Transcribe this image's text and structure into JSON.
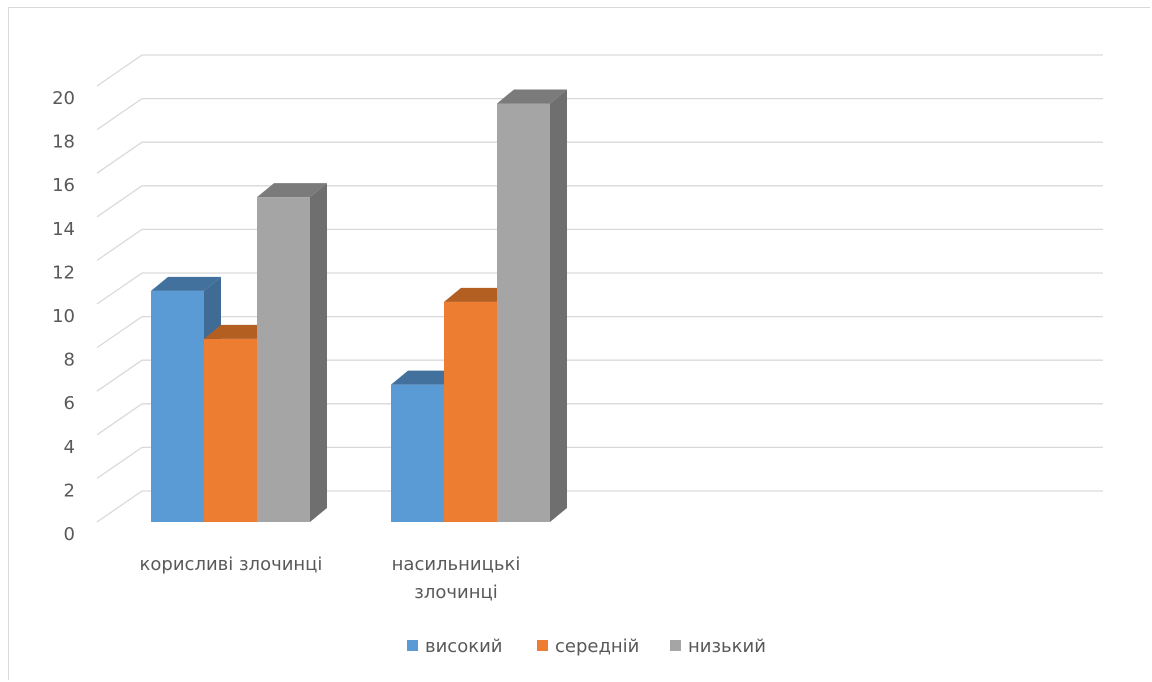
{
  "chart_data": {
    "type": "bar",
    "style": "3d-clustered-column",
    "categories": [
      "корисливі злочинці",
      "насильницькі злочинці"
    ],
    "series": [
      {
        "name": "високий",
        "values": [
          10.6,
          6.3
        ],
        "color": "#5b9bd5",
        "top_color": "#41719c",
        "side_color": "#3f6b94"
      },
      {
        "name": "середній",
        "values": [
          8.4,
          10.1
        ],
        "color": "#ed7d31",
        "top_color": "#b35f22",
        "side_color": "#ae5a21"
      },
      {
        "name": "низький",
        "values": [
          14.9,
          19.2
        ],
        "color": "#a5a5a5",
        "top_color": "#7b7b7b",
        "side_color": "#6f6f6f"
      }
    ],
    "ylim": [
      0,
      20
    ],
    "yticks": [
      0,
      2,
      4,
      6,
      8,
      10,
      12,
      14,
      16,
      18,
      20
    ],
    "grid": true,
    "legend_position": "bottom",
    "title": "",
    "xlabel": "",
    "ylabel": ""
  },
  "colors": {
    "gridline": "#d9d9d9",
    "text": "#595959"
  }
}
